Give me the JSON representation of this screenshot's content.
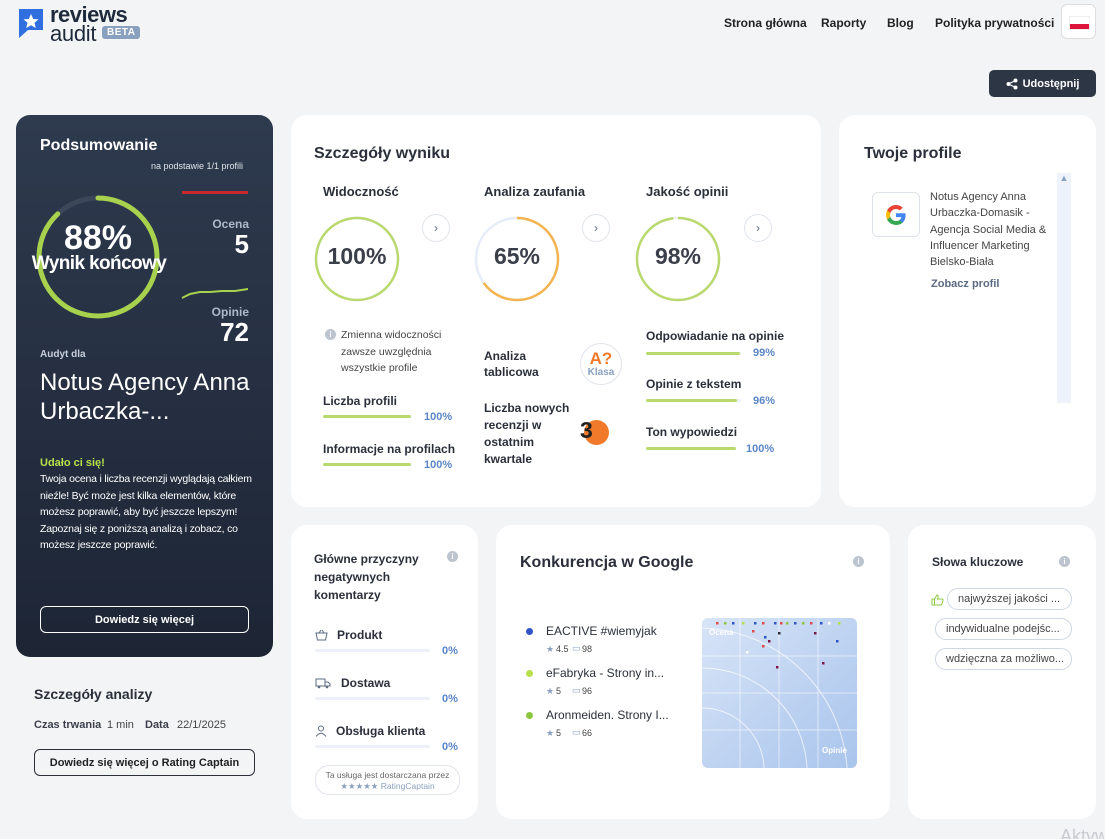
{
  "header": {
    "logo_line1": "reviews",
    "logo_line2": "audit",
    "logo_badge": "BETA",
    "nav": [
      "Strona główna",
      "Raporty",
      "Blog",
      "Polityka prywatności"
    ],
    "share_label": "Udostępnij"
  },
  "summary": {
    "title": "Podsumowanie",
    "subtitle": "na podstawie 1/1 profili",
    "score": "88%",
    "score_label": "Wynik końcowy",
    "score_value": 0.88,
    "rating_label": "Ocena",
    "rating_value": "5",
    "reviews_label": "Opinie",
    "reviews_value": "72",
    "audit_for_label": "Audyt dla",
    "company": "Notus Agency Anna Urbaczka-...",
    "success_title": "Udało ci się!",
    "success_text": "Twoja ocena i liczba recenzji wyglądają całkiem nieźle! Być może jest kilka elementów, które możesz poprawić, aby być jeszcze lepszym! Zapoznaj się z poniższą analizą i zobacz, co możesz jeszcze poprawić.",
    "learn_more": "Dowiedz się więcej"
  },
  "details": {
    "title": "Szczegóły wyniku",
    "visibility": {
      "title": "Widoczność",
      "value": "100%",
      "fill": 1.0,
      "note": "Zmienna widoczności zawsze uwzględnia wszystkie profile",
      "rows": [
        {
          "label": "Liczba profili",
          "pct": "100%",
          "fill": 1.0
        },
        {
          "label": "Informacje na profilach",
          "pct": "100%",
          "fill": 1.0
        }
      ]
    },
    "trust": {
      "title": "Analiza zaufania",
      "value": "65%",
      "fill": 0.65,
      "table_label": "Analiza tablicowa",
      "grade": "A?",
      "grade_sub": "Klasa",
      "new_reviews_label": "Liczba nowych recenzji w ostatnim kwartale",
      "new_reviews_value": "3"
    },
    "quality": {
      "title": "Jakość opinii",
      "value": "98%",
      "fill": 0.98,
      "rows": [
        {
          "label": "Odpowiadanie na opinie",
          "pct": "99%",
          "fill": 0.99
        },
        {
          "label": "Opinie z tekstem",
          "pct": "96%",
          "fill": 0.96
        },
        {
          "label": "Ton wypowiedzi",
          "pct": "100%",
          "fill": 1.0
        }
      ]
    }
  },
  "profiles": {
    "title": "Twoje profile",
    "name": "Notus Agency Anna Urbaczka-Domasik - Agencja Social Media & Influencer Marketing Bielsko-Biała",
    "link": "Zobacz profil"
  },
  "analysis": {
    "title": "Szczegóły analizy",
    "duration_label": "Czas trwania",
    "duration_value": "1 min",
    "date_label": "Data",
    "date_value": "22/1/2025",
    "button": "Dowiedz się więcej o Rating Captain"
  },
  "negative": {
    "title": "Główne przyczyny negatywnych komentarzy",
    "items": [
      {
        "label": "Produkt",
        "pct": "0%"
      },
      {
        "label": "Dostawa",
        "pct": "0%"
      },
      {
        "label": "Obsługa klienta",
        "pct": "0%"
      }
    ],
    "footer1": "Ta usługa jest dostarczana przez",
    "footer2": "RatingCaptain"
  },
  "competition": {
    "title": "Konkurencja w Google",
    "items": [
      {
        "name": "EACTIVE #wiemyjak",
        "rating": "4.5",
        "reviews": "98",
        "color": "#2f55c8"
      },
      {
        "name": "eFabryka - Strony in...",
        "rating": "5",
        "reviews": "96",
        "color": "#b8e04a"
      },
      {
        "name": "Aronmeiden. Strony I...",
        "rating": "5",
        "reviews": "66",
        "color": "#8cc63f"
      }
    ],
    "axis_y": "Ocena",
    "axis_x": "Opinie"
  },
  "keywords": {
    "title": "Słowa kluczowe",
    "items": [
      "najwyższej jakości ...",
      "indywidualne podejśc...",
      "wdzięczna za możliwo..."
    ]
  },
  "watermark": "Aktyw"
}
